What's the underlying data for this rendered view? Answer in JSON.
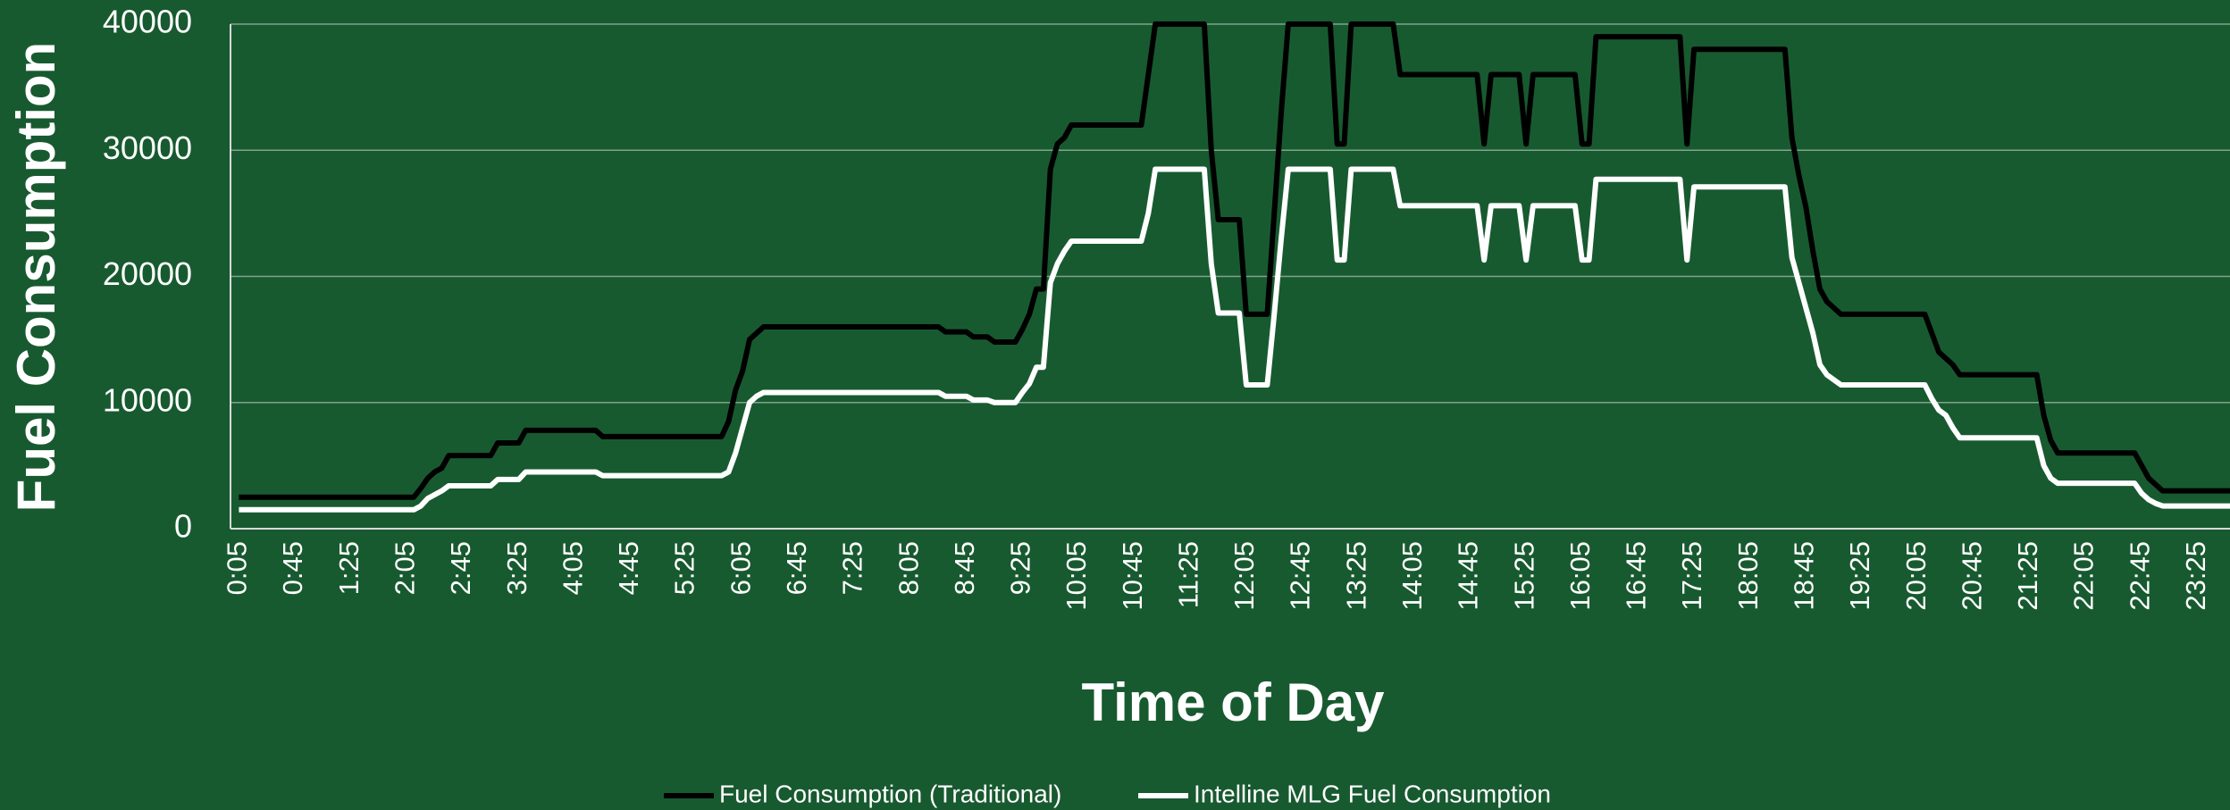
{
  "chart_data": {
    "type": "line",
    "ylabel": "Fuel Consumption",
    "xlabel": "Time of Day",
    "ylim": [
      0,
      40000
    ],
    "yticks": [
      0,
      10000,
      20000,
      30000,
      40000
    ],
    "grid": true,
    "legend": "bottom",
    "categories": [
      "0:05",
      null,
      null,
      null,
      null,
      null,
      null,
      null,
      "0:45",
      null,
      null,
      null,
      null,
      null,
      null,
      null,
      "1:25",
      null,
      null,
      null,
      null,
      null,
      null,
      null,
      "2:05",
      null,
      null,
      null,
      null,
      null,
      null,
      null,
      "2:45",
      null,
      null,
      null,
      null,
      null,
      null,
      null,
      "3:25",
      null,
      null,
      null,
      null,
      null,
      null,
      null,
      "4:05",
      null,
      null,
      null,
      null,
      null,
      null,
      null,
      "4:45",
      null,
      null,
      null,
      null,
      null,
      null,
      null,
      "5:25",
      null,
      null,
      null,
      null,
      null,
      null,
      null,
      "6:05",
      null,
      null,
      null,
      null,
      null,
      null,
      null,
      "6:45",
      null,
      null,
      null,
      null,
      null,
      null,
      null,
      "7:25",
      null,
      null,
      null,
      null,
      null,
      null,
      null,
      "8:05",
      null,
      null,
      null,
      null,
      null,
      null,
      null,
      "8:45",
      null,
      null,
      null,
      null,
      null,
      null,
      null,
      "9:25",
      null,
      null,
      null,
      null,
      null,
      null,
      null,
      "10:05",
      null,
      null,
      null,
      null,
      null,
      null,
      null,
      "10:45",
      null,
      null,
      null,
      null,
      null,
      null,
      null,
      "11:25",
      null,
      null,
      null,
      null,
      null,
      null,
      null,
      "12:05",
      null,
      null,
      null,
      null,
      null,
      null,
      null,
      "12:45",
      null,
      null,
      null,
      null,
      null,
      null,
      null,
      "13:25",
      null,
      null,
      null,
      null,
      null,
      null,
      null,
      "14:05",
      null,
      null,
      null,
      null,
      null,
      null,
      null,
      "14:45",
      null,
      null,
      null,
      null,
      null,
      null,
      null,
      "15:25",
      null,
      null,
      null,
      null,
      null,
      null,
      null,
      "16:05",
      null,
      null,
      null,
      null,
      null,
      null,
      null,
      "16:45",
      null,
      null,
      null,
      null,
      null,
      null,
      null,
      "17:25",
      null,
      null,
      null,
      null,
      null,
      null,
      null,
      "18:05",
      null,
      null,
      null,
      null,
      null,
      null,
      null,
      "18:45",
      null,
      null,
      null,
      null,
      null,
      null,
      null,
      "19:25",
      null,
      null,
      null,
      null,
      null,
      null,
      null,
      "20:05",
      null,
      null,
      null,
      null,
      null,
      null,
      null,
      "20:45",
      null,
      null,
      null,
      null,
      null,
      null,
      null,
      "21:25",
      null,
      null,
      null,
      null,
      null,
      null,
      null,
      "22:05",
      null,
      null,
      null,
      null,
      null,
      null,
      null,
      "22:45",
      null,
      null,
      null,
      null,
      null,
      null,
      null,
      "23:25",
      null,
      null,
      null,
      null,
      null,
      null
    ],
    "series": [
      {
        "name": "Fuel Consumption (Traditional)",
        "color": "#000000",
        "values": [
          2500,
          2500,
          2500,
          2500,
          2500,
          2500,
          2500,
          2500,
          2500,
          2500,
          2500,
          2500,
          2500,
          2500,
          2500,
          2500,
          2500,
          2500,
          2500,
          2500,
          2500,
          2500,
          2500,
          2500,
          2500,
          2500,
          3200,
          4000,
          4500,
          4800,
          5800,
          5800,
          5800,
          5800,
          5800,
          5800,
          5800,
          6800,
          6800,
          6800,
          6800,
          7800,
          7800,
          7800,
          7800,
          7800,
          7800,
          7800,
          7800,
          7800,
          7800,
          7800,
          7300,
          7300,
          7300,
          7300,
          7300,
          7300,
          7300,
          7300,
          7300,
          7300,
          7300,
          7300,
          7300,
          7300,
          7300,
          7300,
          7300,
          7300,
          8500,
          11000,
          12500,
          15000,
          15500,
          16000,
          16000,
          16000,
          16000,
          16000,
          16000,
          16000,
          16000,
          16000,
          16000,
          16000,
          16000,
          16000,
          16000,
          16000,
          16000,
          16000,
          16000,
          16000,
          16000,
          16000,
          16000,
          16000,
          16000,
          16000,
          16000,
          15600,
          15600,
          15600,
          15600,
          15200,
          15200,
          15200,
          14800,
          14800,
          14800,
          14800,
          15800,
          17000,
          19000,
          19000,
          28500,
          30500,
          31000,
          32000,
          32000,
          32000,
          32000,
          32000,
          32000,
          32000,
          32000,
          32000,
          32000,
          32000,
          36000,
          40000,
          40000,
          40000,
          40000,
          40000,
          40000,
          40000,
          40000,
          30000,
          24500,
          24500,
          24500,
          24500,
          17000,
          17000,
          17000,
          17000,
          25000,
          33000,
          40000,
          40000,
          40000,
          40000,
          40000,
          40000,
          40000,
          30500,
          30500,
          40000,
          40000,
          40000,
          40000,
          40000,
          40000,
          40000,
          36000,
          36000,
          36000,
          36000,
          36000,
          36000,
          36000,
          36000,
          36000,
          36000,
          36000,
          36000,
          30500,
          36000,
          36000,
          36000,
          36000,
          36000,
          30500,
          36000,
          36000,
          36000,
          36000,
          36000,
          36000,
          36000,
          30500,
          30500,
          39000,
          39000,
          39000,
          39000,
          39000,
          39000,
          39000,
          39000,
          39000,
          39000,
          39000,
          39000,
          39000,
          30500,
          38000,
          38000,
          38000,
          38000,
          38000,
          38000,
          38000,
          38000,
          38000,
          38000,
          38000,
          38000,
          38000,
          38000,
          31000,
          28000,
          25500,
          22000,
          19000,
          18000,
          17500,
          17000,
          17000,
          17000,
          17000,
          17000,
          17000,
          17000,
          17000,
          17000,
          17000,
          17000,
          17000,
          17000,
          15500,
          14000,
          13500,
          13000,
          12200,
          12200,
          12200,
          12200,
          12200,
          12200,
          12200,
          12200,
          12200,
          12200,
          12200,
          12200,
          9000,
          7000,
          6000,
          6000,
          6000,
          6000,
          6000,
          6000,
          6000,
          6000,
          6000,
          6000,
          6000,
          6000,
          5000,
          4000,
          3500,
          3000,
          3000,
          3000,
          3000,
          3000,
          3000,
          3000,
          3000,
          3000,
          3000,
          3000,
          3000
        ]
      },
      {
        "name": "Intelline MLG Fuel Consumption",
        "color": "#ffffff",
        "values": [
          1500,
          1500,
          1500,
          1500,
          1500,
          1500,
          1500,
          1500,
          1500,
          1500,
          1500,
          1500,
          1500,
          1500,
          1500,
          1500,
          1500,
          1500,
          1500,
          1500,
          1500,
          1500,
          1500,
          1500,
          1500,
          1500,
          1800,
          2400,
          2700,
          3000,
          3400,
          3400,
          3400,
          3400,
          3400,
          3400,
          3400,
          3900,
          3900,
          3900,
          3900,
          4500,
          4500,
          4500,
          4500,
          4500,
          4500,
          4500,
          4500,
          4500,
          4500,
          4500,
          4200,
          4200,
          4200,
          4200,
          4200,
          4200,
          4200,
          4200,
          4200,
          4200,
          4200,
          4200,
          4200,
          4200,
          4200,
          4200,
          4200,
          4200,
          4500,
          6000,
          8000,
          10000,
          10500,
          10800,
          10800,
          10800,
          10800,
          10800,
          10800,
          10800,
          10800,
          10800,
          10800,
          10800,
          10800,
          10800,
          10800,
          10800,
          10800,
          10800,
          10800,
          10800,
          10800,
          10800,
          10800,
          10800,
          10800,
          10800,
          10800,
          10500,
          10500,
          10500,
          10500,
          10200,
          10200,
          10200,
          10000,
          10000,
          10000,
          10000,
          10800,
          11500,
          12800,
          12800,
          19500,
          21000,
          22000,
          22800,
          22800,
          22800,
          22800,
          22800,
          22800,
          22800,
          22800,
          22800,
          22800,
          22800,
          25000,
          28500,
          28500,
          28500,
          28500,
          28500,
          28500,
          28500,
          28500,
          21000,
          17100,
          17100,
          17100,
          17100,
          11400,
          11400,
          11400,
          11400,
          17000,
          23000,
          28500,
          28500,
          28500,
          28500,
          28500,
          28500,
          28500,
          21300,
          21300,
          28500,
          28500,
          28500,
          28500,
          28500,
          28500,
          28500,
          25600,
          25600,
          25600,
          25600,
          25600,
          25600,
          25600,
          25600,
          25600,
          25600,
          25600,
          25600,
          21300,
          25600,
          25600,
          25600,
          25600,
          25600,
          21300,
          25600,
          25600,
          25600,
          25600,
          25600,
          25600,
          25600,
          21300,
          21300,
          27700,
          27700,
          27700,
          27700,
          27700,
          27700,
          27700,
          27700,
          27700,
          27700,
          27700,
          27700,
          27700,
          21300,
          27100,
          27100,
          27100,
          27100,
          27100,
          27100,
          27100,
          27100,
          27100,
          27100,
          27100,
          27100,
          27100,
          27100,
          21500,
          19500,
          17500,
          15500,
          13000,
          12200,
          11800,
          11400,
          11400,
          11400,
          11400,
          11400,
          11400,
          11400,
          11400,
          11400,
          11400,
          11400,
          11400,
          11400,
          10300,
          9400,
          9000,
          8000,
          7200,
          7200,
          7200,
          7200,
          7200,
          7200,
          7200,
          7200,
          7200,
          7200,
          7200,
          7200,
          5000,
          4000,
          3600,
          3600,
          3600,
          3600,
          3600,
          3600,
          3600,
          3600,
          3600,
          3600,
          3600,
          3600,
          2800,
          2300,
          2000,
          1800,
          1800,
          1800,
          1800,
          1800,
          1800,
          1800,
          1800,
          1800,
          1800,
          1800,
          1800
        ]
      }
    ]
  }
}
